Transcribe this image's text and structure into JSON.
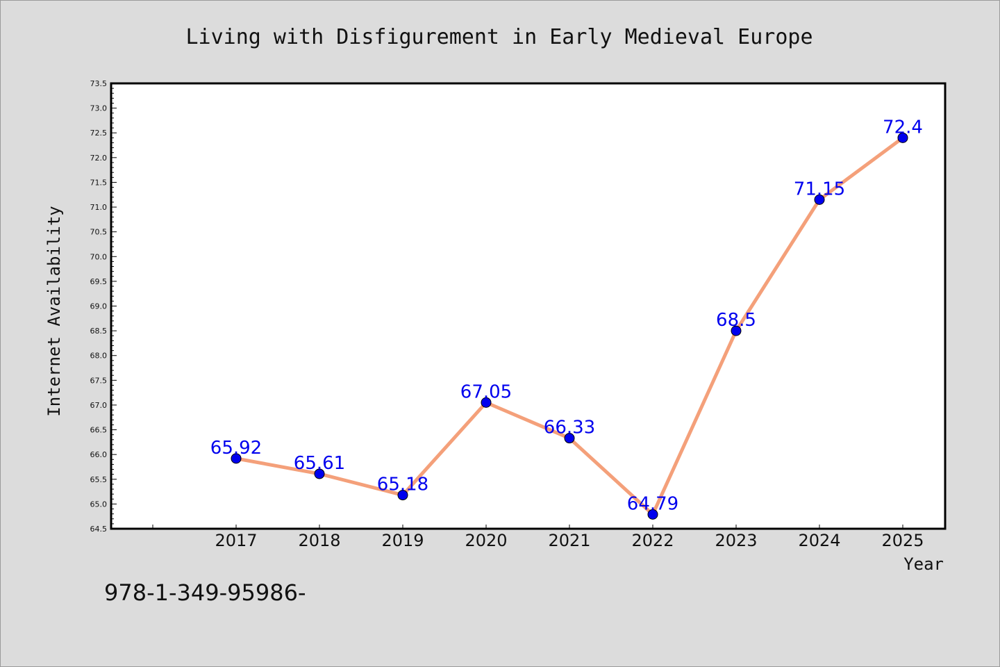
{
  "chart_data": {
    "type": "line",
    "title": "Living with Disfigurement in Early Medieval Europe",
    "xlabel": "Year",
    "ylabel": "Internet Availability",
    "x": [
      "2017",
      "2018",
      "2019",
      "2020",
      "2021",
      "2022",
      "2023",
      "2024",
      "2025"
    ],
    "series": [
      {
        "values": [
          65.92,
          65.61,
          65.18,
          67.05,
          66.33,
          64.79,
          68.5,
          71.15,
          72.4
        ]
      }
    ],
    "data_labels": [
      "65.92",
      "65.61",
      "65.18",
      "67.05",
      "66.33",
      "64.79",
      "68.5",
      "71.15",
      "72.4"
    ],
    "ylim": [
      64.5,
      73.5
    ],
    "yticks": [
      "64.5",
      "65.0",
      "65.5",
      "66.0",
      "66.5",
      "67.0",
      "67.5",
      "68.0",
      "68.5",
      "69.0",
      "69.5",
      "70.0",
      "70.5",
      "71.0",
      "71.5",
      "72.0",
      "72.5",
      "73.0",
      "73.5"
    ],
    "grid": false,
    "colors": {
      "line": "#f4a07a",
      "marker": "#0000ee",
      "label": "#0000ee",
      "background": "#dcdcdc",
      "plot_bg": "#ffffff"
    }
  },
  "footer_text": "978-1-349-95986-"
}
